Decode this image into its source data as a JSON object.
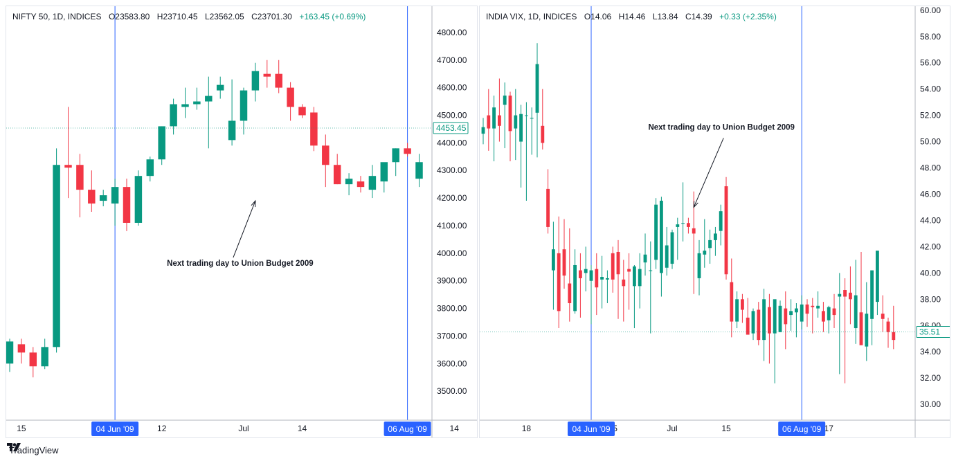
{
  "colors": {
    "up": "#089981",
    "down": "#f23645",
    "marker": "#2962ff",
    "text": "#131722",
    "border": "#e0e3eb"
  },
  "footer": {
    "brand": "TradingView",
    "logo_icon": "tradingview-logo-icon"
  },
  "chart_data": [
    {
      "type": "candlestick",
      "legend": {
        "symbol": "NIFTY 50, 1D, INDICES",
        "open": "O23583.80",
        "high": "H23710.45",
        "low": "L23562.05",
        "close": "C23701.30",
        "change": "+163.45 (+0.69%)"
      },
      "y_ticks": [
        "4800.00",
        "4700.00",
        "4600.00",
        "4500.00",
        "4400.00",
        "4300.00",
        "4200.00",
        "4100.00",
        "4000.00",
        "3900.00",
        "3800.00",
        "3700.00",
        "3600.00",
        "3500.00"
      ],
      "ylim": [
        3410,
        4880
      ],
      "last_price": "4453.45",
      "x_ticks": [
        {
          "label": "15",
          "index": 1
        },
        {
          "label": "12",
          "index": 13
        },
        {
          "label": "Jul",
          "index": 20
        },
        {
          "label": "14",
          "index": 25
        },
        {
          "label": "14",
          "index": 38
        }
      ],
      "markers": [
        {
          "label": "04 Jun '09",
          "index": 9
        },
        {
          "label": "06 Aug '09",
          "index": 34
        }
      ],
      "annotation": {
        "text": "Next trading day to Union Budget 2009",
        "target_index": 21,
        "target_value": 4190
      },
      "candles": [
        {
          "o": 3600,
          "h": 3690,
          "l": 3570,
          "c": 3680
        },
        {
          "o": 3670,
          "h": 3690,
          "l": 3600,
          "c": 3640
        },
        {
          "o": 3640,
          "h": 3660,
          "l": 3550,
          "c": 3590
        },
        {
          "o": 3590,
          "h": 3690,
          "l": 3580,
          "c": 3660
        },
        {
          "o": 3660,
          "h": 4380,
          "l": 3640,
          "c": 4320
        },
        {
          "o": 4320,
          "h": 4530,
          "l": 4200,
          "c": 4310
        },
        {
          "o": 4320,
          "h": 4360,
          "l": 4130,
          "c": 4230
        },
        {
          "o": 4230,
          "h": 4300,
          "l": 4150,
          "c": 4180
        },
        {
          "o": 4190,
          "h": 4230,
          "l": 4170,
          "c": 4210
        },
        {
          "o": 4180,
          "h": 4270,
          "l": 4100,
          "c": 4240
        },
        {
          "o": 4240,
          "h": 4270,
          "l": 4080,
          "c": 4110
        },
        {
          "o": 4110,
          "h": 4300,
          "l": 4100,
          "c": 4280
        },
        {
          "o": 4280,
          "h": 4350,
          "l": 4260,
          "c": 4340
        },
        {
          "o": 4340,
          "h": 4460,
          "l": 4320,
          "c": 4460
        },
        {
          "o": 4460,
          "h": 4560,
          "l": 4430,
          "c": 4540
        },
        {
          "o": 4530,
          "h": 4600,
          "l": 4490,
          "c": 4540
        },
        {
          "o": 4540,
          "h": 4600,
          "l": 4520,
          "c": 4550
        },
        {
          "o": 4550,
          "h": 4640,
          "l": 4380,
          "c": 4570
        },
        {
          "o": 4590,
          "h": 4640,
          "l": 4560,
          "c": 4610
        },
        {
          "o": 4410,
          "h": 4630,
          "l": 4390,
          "c": 4480
        },
        {
          "o": 4480,
          "h": 4600,
          "l": 4430,
          "c": 4590
        },
        {
          "o": 4590,
          "h": 4690,
          "l": 4550,
          "c": 4660
        },
        {
          "o": 4650,
          "h": 4700,
          "l": 4600,
          "c": 4640
        },
        {
          "o": 4650,
          "h": 4700,
          "l": 4580,
          "c": 4600
        },
        {
          "o": 4600,
          "h": 4620,
          "l": 4480,
          "c": 4530
        },
        {
          "o": 4530,
          "h": 4540,
          "l": 4490,
          "c": 4500
        },
        {
          "o": 4510,
          "h": 4530,
          "l": 4370,
          "c": 4390
        },
        {
          "o": 4390,
          "h": 4430,
          "l": 4240,
          "c": 4320
        },
        {
          "o": 4320,
          "h": 4360,
          "l": 4250,
          "c": 4250
        },
        {
          "o": 4250,
          "h": 4290,
          "l": 4210,
          "c": 4270
        },
        {
          "o": 4260,
          "h": 4280,
          "l": 4220,
          "c": 4240
        },
        {
          "o": 4230,
          "h": 4320,
          "l": 4200,
          "c": 4280
        },
        {
          "o": 4260,
          "h": 4320,
          "l": 4220,
          "c": 4330
        },
        {
          "o": 4330,
          "h": 4380,
          "l": 4280,
          "c": 4380
        },
        {
          "o": 4380,
          "h": 4400,
          "l": 4350,
          "c": 4360
        },
        {
          "o": 4270,
          "h": 4360,
          "l": 4240,
          "c": 4330
        }
      ]
    },
    {
      "type": "candlestick",
      "legend": {
        "symbol": "INDIA VIX, 1D, INDICES",
        "open": "O14.06",
        "high": "H14.46",
        "low": "L13.84",
        "close": "C14.39",
        "change": "+0.33 (+2.35%)"
      },
      "y_ticks": [
        "60.00",
        "58.00",
        "56.00",
        "54.00",
        "52.00",
        "50.00",
        "48.00",
        "46.00",
        "44.00",
        "42.00",
        "40.00",
        "38.00",
        "36.00",
        "34.00",
        "32.00",
        "30.00"
      ],
      "ylim": [
        28.9,
        60.2
      ],
      "last_price": "35.51",
      "x_ticks": [
        {
          "label": "18",
          "index": 8
        },
        {
          "label": "15",
          "index": 24
        },
        {
          "label": "Jul",
          "index": 35
        },
        {
          "label": "15",
          "index": 45
        },
        {
          "label": "17",
          "index": 64
        }
      ],
      "markers": [
        {
          "label": "04 Jun '09",
          "index": 20
        },
        {
          "label": "06 Aug '09",
          "index": 59
        }
      ],
      "annotation": {
        "text": "Next trading day to Union Budget 2009",
        "target_index": 39,
        "target_value": 45.0
      }
    }
  ]
}
